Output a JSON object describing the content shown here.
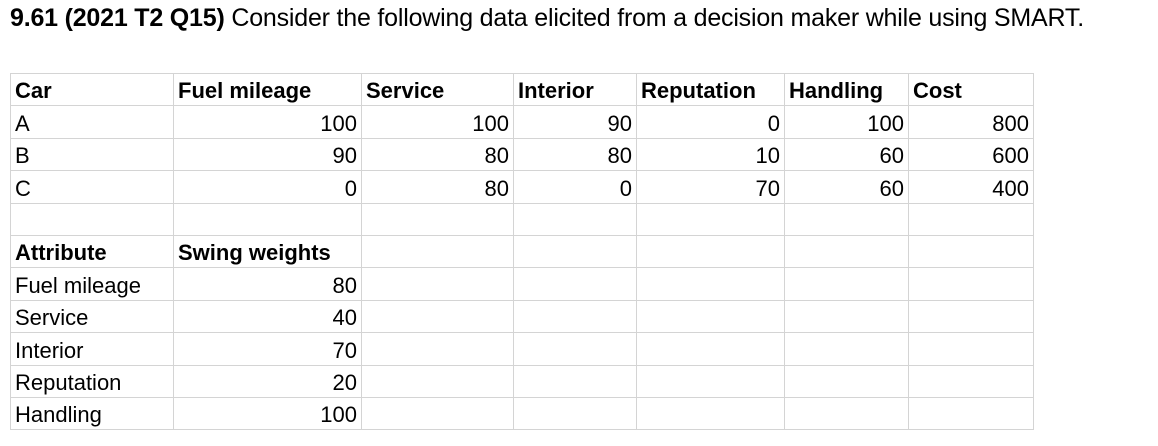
{
  "question": {
    "number": "9.61 (2021 T2 Q15)",
    "text": " Consider the following data elicited from a decision maker while using SMART."
  },
  "cars_table": {
    "headers": [
      "Car",
      "Fuel mileage",
      "Service",
      "Interior",
      "Reputation",
      "Handling",
      "Cost"
    ],
    "rows": [
      [
        "A",
        "100",
        "100",
        "90",
        "0",
        "100",
        "800"
      ],
      [
        "B",
        "90",
        "80",
        "80",
        "10",
        "60",
        "600"
      ],
      [
        "C",
        "0",
        "80",
        "0",
        "70",
        "60",
        "400"
      ]
    ]
  },
  "weights_table": {
    "headers": [
      "Attribute",
      "Swing weights"
    ],
    "rows": [
      [
        "Fuel mileage",
        "80"
      ],
      [
        "Service",
        "40"
      ],
      [
        "Interior",
        "70"
      ],
      [
        "Reputation",
        "20"
      ],
      [
        "Handling",
        "100"
      ]
    ]
  }
}
